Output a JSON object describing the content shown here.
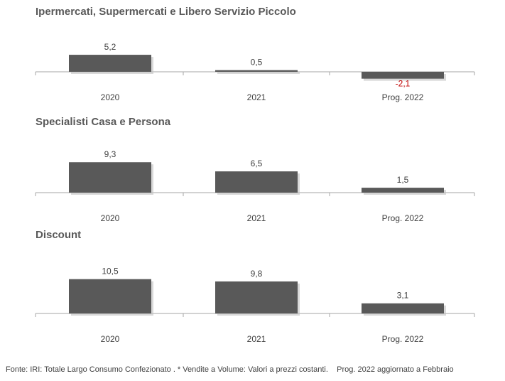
{
  "colors": {
    "bar": "#595959",
    "axis": "#a6a6a6",
    "label": "#404040",
    "negative_label": "#c00000"
  },
  "chart_data": [
    {
      "type": "bar",
      "title": "Ipermercati,  Supermercati e Libero Servizio Piccolo",
      "categories": [
        "2020",
        "2021",
        "Prog. 2022"
      ],
      "values": [
        5.2,
        0.5,
        -2.1
      ],
      "value_labels": [
        "5,2",
        "0,5",
        "-2,1"
      ]
    },
    {
      "type": "bar",
      "title": "Specialisti  Casa e Persona",
      "categories": [
        "2020",
        "2021",
        "Prog. 2022"
      ],
      "values": [
        9.3,
        6.5,
        1.5
      ],
      "value_labels": [
        "9,3",
        "6,5",
        "1,5"
      ]
    },
    {
      "type": "bar",
      "title": "Discount",
      "categories": [
        "2020",
        "2021",
        "Prog. 2022"
      ],
      "values": [
        10.5,
        9.8,
        3.1
      ],
      "value_labels": [
        "10,5",
        "9,8",
        "3,1"
      ]
    }
  ],
  "source_note": "Fonte: IRI: Totale Largo Consumo Confezionato . * Vendite a Volume: Valori a prezzi costanti.    Prog. 2022 aggiornato a Febbraio"
}
